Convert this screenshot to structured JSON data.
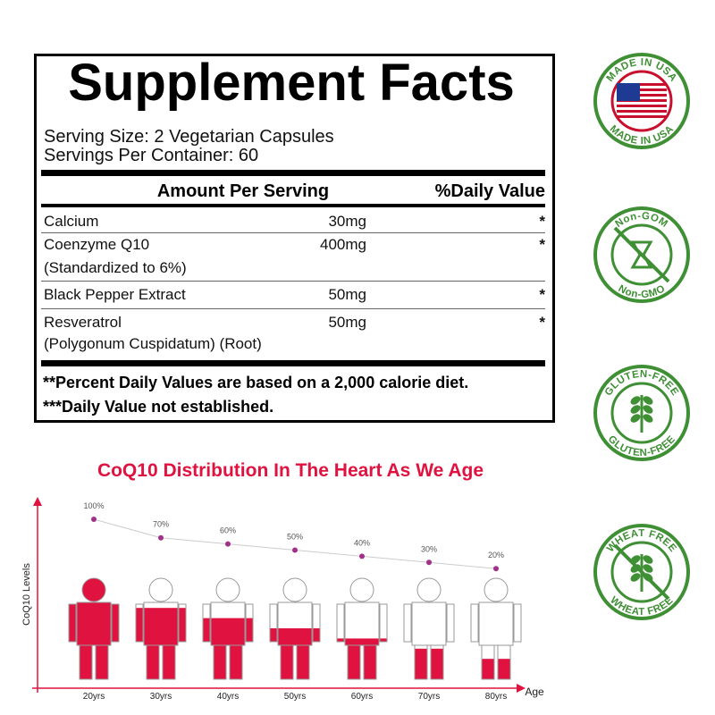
{
  "supplement_facts": {
    "title": "Supplement Facts",
    "serving_size": "Serving Size:  2 Vegetarian Capsules",
    "servings_per_container": "Servings Per Container: 60",
    "header": {
      "amount": "Amount Per Serving",
      "daily_value": "%Daily Value"
    },
    "rows": [
      {
        "name": [
          "Calcium"
        ],
        "amount": "30mg",
        "daily_value": "*"
      },
      {
        "name": [
          "Coenzyme Q10",
          "(Standardized to 6%)"
        ],
        "amount": "400mg",
        "daily_value": "*"
      },
      {
        "name": [
          "Black Pepper Extract"
        ],
        "amount": "50mg",
        "daily_value": "*"
      },
      {
        "name": [
          "Resveratrol",
          "(Polygonum Cuspidatum) (Root)"
        ],
        "amount": "50mg",
        "daily_value": "*"
      }
    ],
    "footnotes": [
      "**Percent Daily Values are based on a 2,000 calorie diet.",
      "***Daily Value not established."
    ]
  },
  "badges": [
    {
      "top": "MADE IN USA",
      "bottom": "MADE IN USA"
    },
    {
      "top": "Non-GOM",
      "bottom": "Non-GMO"
    },
    {
      "top": "GLUTEN-FREE",
      "bottom": "GLUTEN-FREE"
    },
    {
      "top": "WHEAT FREE",
      "bottom": "WHEAT FREE"
    }
  ],
  "chart_data": {
    "type": "line",
    "title": "CoQ10 Distribution In The Heart As We Age",
    "y_label": "CoQ10 Levels",
    "x_label": "Age",
    "categories": [
      "20yrs",
      "30yrs",
      "40yrs",
      "50yrs",
      "60yrs",
      "70yrs",
      "80yrs"
    ],
    "values": [
      100,
      70,
      60,
      50,
      40,
      30,
      20
    ],
    "value_labels": [
      "100%",
      "70%",
      "60%",
      "50%",
      "40%",
      "30%",
      "20%"
    ],
    "ylim": [
      0,
      100
    ],
    "line_color": "#cccccc",
    "point_color": "#a0308a",
    "fill_color": "#e0123f"
  }
}
